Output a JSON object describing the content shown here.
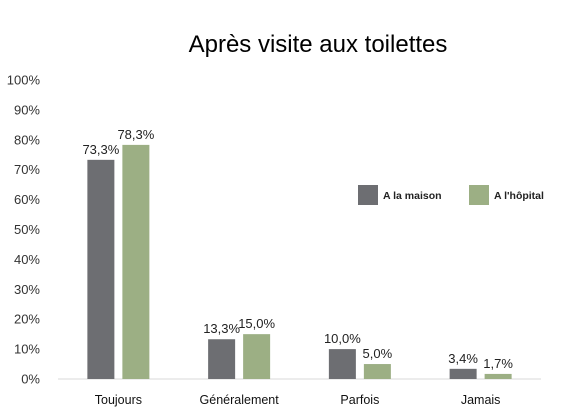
{
  "chart_data": {
    "type": "bar",
    "title": "Après visite aux toilettes",
    "xlabel": "",
    "ylabel": "",
    "ylim": [
      0,
      100
    ],
    "y_ticks": [
      "0%",
      "10%",
      "20%",
      "30%",
      "40%",
      "50%",
      "60%",
      "70%",
      "80%",
      "90%",
      "100%"
    ],
    "categories": [
      "Toujours",
      "Généralement",
      "Parfois",
      "Jamais"
    ],
    "series": [
      {
        "name": "A la maison",
        "color": "#6d6e72",
        "values": [
          73.3,
          13.3,
          10.0,
          3.4
        ],
        "labels": [
          "73,3%",
          "13,3%",
          "10,0%",
          "3,4%"
        ]
      },
      {
        "name": "A l'hôpital",
        "color": "#9caf84",
        "values": [
          78.3,
          15.0,
          5.0,
          1.7
        ],
        "labels": [
          "78,3%",
          "15,0%",
          "5,0%",
          "1,7%"
        ]
      }
    ],
    "legend_position": "right",
    "grid": false
  }
}
